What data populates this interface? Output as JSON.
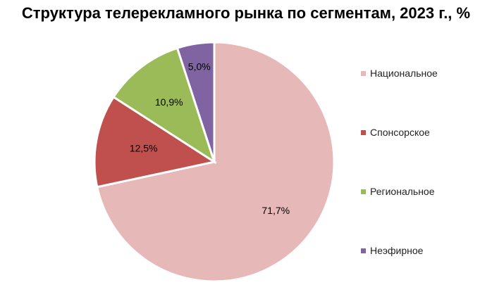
{
  "chart_data": {
    "type": "pie",
    "title": "Структура телерекламного рынка по сегментам, 2023 г., %",
    "categories": [
      "Национальное",
      "Спонсорское",
      "Региональное",
      "Неэфирное"
    ],
    "values": [
      71.7,
      12.5,
      10.9,
      5.0
    ],
    "data_labels": [
      "71,7%",
      "12,5%",
      "10,9%",
      "5,0%"
    ],
    "colors": [
      "#e6b9b8",
      "#c0504d",
      "#9bbb59",
      "#8064a2"
    ],
    "legend_position": "right",
    "start_angle": "12 o'clock",
    "direction": "clockwise"
  }
}
